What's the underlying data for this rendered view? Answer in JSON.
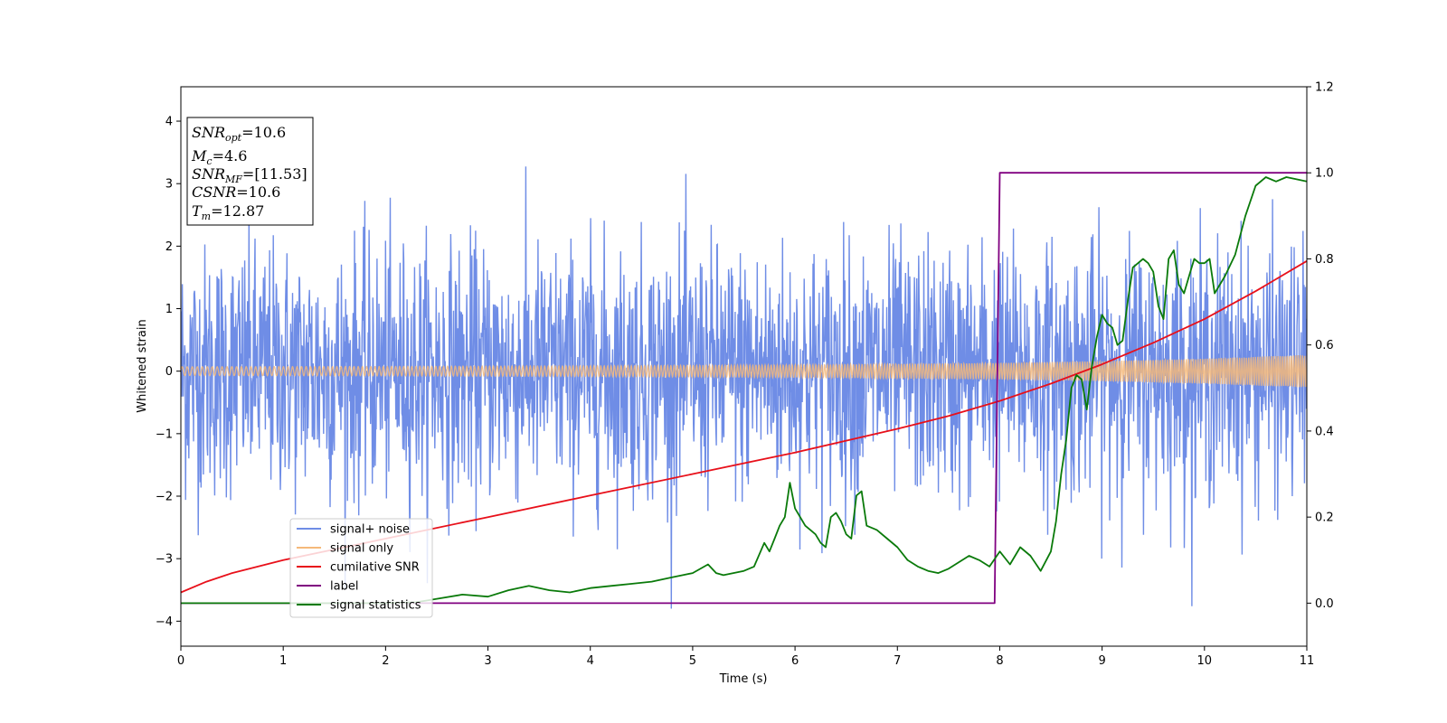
{
  "chart_data": {
    "type": "line",
    "xlabel": "Time (s)",
    "ylabel": "Whitened strain",
    "xlim": [
      0,
      11
    ],
    "ylim_left": [
      -4.4,
      4.55
    ],
    "ylim_right": [
      -0.1,
      1.2
    ],
    "x_ticks": [
      0,
      1,
      2,
      3,
      4,
      5,
      6,
      7,
      8,
      9,
      10,
      11
    ],
    "y_ticks_left": [
      -4,
      -3,
      -2,
      -1,
      0,
      1,
      2,
      3,
      4
    ],
    "y_ticks_right": [
      "0.0",
      "0.2",
      "0.4",
      "0.6",
      "0.8",
      "1.0",
      "1.2"
    ],
    "legend_position": "lower-left",
    "annotation": {
      "lines": [
        {
          "var": "SNR",
          "sub": "opt",
          "value": "=10.6"
        },
        {
          "var": "M",
          "sub": "c",
          "value": "=4.6"
        },
        {
          "var": "SNR",
          "sub": "MF",
          "value": "=[11.53]"
        },
        {
          "var": "CSNR",
          "sub": "",
          "value": "=10.6"
        },
        {
          "var": "T",
          "sub": "m",
          "value": "=12.87"
        }
      ]
    },
    "series": [
      {
        "name": "signal+ noise",
        "axis": "left",
        "color": "#6f8de6",
        "style": "dense noise, approx. Gaussian sigma 1.0 with spikes up to about +4.1 and down to about -3.8",
        "sigma": 1.0,
        "peak_max": 4.1,
        "peak_min": -3.8
      },
      {
        "name": "signal only",
        "axis": "left",
        "color": "#f5b97a",
        "style": "chirp envelope",
        "envelope_x": [
          0,
          2,
          4,
          6,
          8,
          9,
          10,
          11
        ],
        "envelope_amp": [
          0.07,
          0.075,
          0.085,
          0.1,
          0.13,
          0.16,
          0.2,
          0.26
        ]
      },
      {
        "name": "cumilative SNR",
        "axis": "right",
        "color": "#e8101a",
        "x": [
          0,
          0.25,
          0.5,
          1,
          1.5,
          2,
          3,
          4,
          5,
          6,
          7,
          7.5,
          8,
          8.5,
          9,
          9.5,
          10,
          10.5,
          11
        ],
        "y": [
          0.025,
          0.05,
          0.07,
          0.1,
          0.125,
          0.15,
          0.2,
          0.25,
          0.3,
          0.35,
          0.405,
          0.435,
          0.47,
          0.51,
          0.555,
          0.605,
          0.66,
          0.725,
          0.795
        ]
      },
      {
        "name": "label",
        "axis": "right",
        "color": "#800080",
        "x": [
          0,
          7.95,
          8.0,
          11
        ],
        "y": [
          0,
          0,
          1.0,
          1.0
        ]
      },
      {
        "name": "signal statistics",
        "axis": "right",
        "color": "#0a7a0a",
        "x": [
          0,
          1,
          2,
          2.3,
          2.5,
          2.75,
          3,
          3.2,
          3.4,
          3.6,
          3.8,
          4,
          4.2,
          4.4,
          4.6,
          4.8,
          5,
          5.15,
          5.23,
          5.3,
          5.5,
          5.6,
          5.7,
          5.75,
          5.8,
          5.85,
          5.9,
          5.95,
          6.0,
          6.1,
          6.15,
          6.2,
          6.25,
          6.3,
          6.35,
          6.4,
          6.45,
          6.5,
          6.55,
          6.6,
          6.65,
          6.7,
          6.75,
          6.8,
          6.9,
          7.0,
          7.1,
          7.2,
          7.3,
          7.4,
          7.5,
          7.6,
          7.7,
          7.8,
          7.9,
          8.0,
          8.1,
          8.2,
          8.3,
          8.4,
          8.5,
          8.55,
          8.6,
          8.65,
          8.7,
          8.75,
          8.8,
          8.85,
          8.9,
          8.95,
          9.0,
          9.05,
          9.1,
          9.15,
          9.2,
          9.25,
          9.3,
          9.35,
          9.4,
          9.45,
          9.5,
          9.55,
          9.6,
          9.65,
          9.7,
          9.75,
          9.8,
          9.85,
          9.9,
          9.95,
          10.0,
          10.05,
          10.1,
          10.15,
          10.2,
          10.3,
          10.4,
          10.5,
          10.6,
          10.7,
          10.8,
          10.9,
          11.0
        ],
        "y": [
          0,
          0,
          0,
          0.002,
          0.01,
          0.02,
          0.015,
          0.03,
          0.04,
          0.03,
          0.025,
          0.035,
          0.04,
          0.045,
          0.05,
          0.06,
          0.07,
          0.09,
          0.07,
          0.065,
          0.075,
          0.085,
          0.14,
          0.12,
          0.15,
          0.18,
          0.2,
          0.28,
          0.22,
          0.18,
          0.17,
          0.16,
          0.14,
          0.13,
          0.2,
          0.21,
          0.19,
          0.16,
          0.15,
          0.25,
          0.26,
          0.18,
          0.175,
          0.17,
          0.15,
          0.13,
          0.1,
          0.085,
          0.075,
          0.07,
          0.08,
          0.095,
          0.11,
          0.1,
          0.085,
          0.12,
          0.09,
          0.13,
          0.11,
          0.075,
          0.12,
          0.19,
          0.3,
          0.38,
          0.5,
          0.53,
          0.52,
          0.45,
          0.55,
          0.62,
          0.67,
          0.65,
          0.64,
          0.6,
          0.61,
          0.7,
          0.78,
          0.79,
          0.8,
          0.79,
          0.77,
          0.69,
          0.66,
          0.8,
          0.82,
          0.74,
          0.72,
          0.76,
          0.8,
          0.79,
          0.79,
          0.8,
          0.72,
          0.74,
          0.76,
          0.81,
          0.9,
          0.97,
          0.99,
          0.98,
          0.99,
          0.985,
          0.98
        ]
      }
    ]
  }
}
